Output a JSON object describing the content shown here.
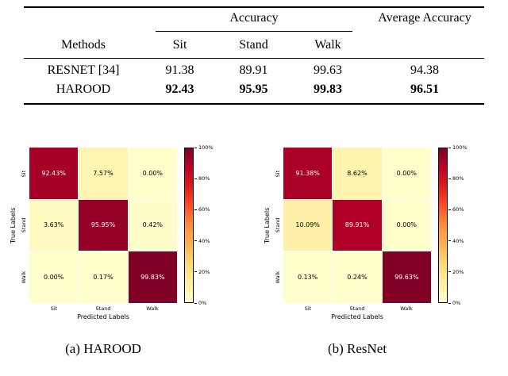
{
  "table": {
    "group_headers": {
      "accuracy": "Accuracy",
      "average_accuracy": "Average Accuracy"
    },
    "column_headers": {
      "methods": "Methods",
      "sit": "Sit",
      "stand": "Stand",
      "walk": "Walk"
    },
    "rows": [
      {
        "method": "RESNET [34]",
        "sit": "91.38",
        "stand": "89.91",
        "walk": "99.63",
        "average": "94.38",
        "bold": false
      },
      {
        "method": "HAROOD",
        "sit": "92.43",
        "stand": "95.95",
        "walk": "99.83",
        "average": "96.51",
        "bold": true
      }
    ]
  },
  "chart_data": [
    {
      "type": "heatmap",
      "caption": "(a) HAROOD",
      "xlabel": "Predicted Labels",
      "ylabel": "True Labels",
      "x_ticks": [
        "Sit",
        "Stand",
        "Walk"
      ],
      "y_ticks": [
        "Sit",
        "Stand",
        "Walk"
      ],
      "values": [
        [
          92.43,
          7.57,
          0.0
        ],
        [
          3.63,
          95.95,
          0.42
        ],
        [
          0.0,
          0.17,
          99.83
        ]
      ],
      "value_suffix": "%",
      "colorbar": {
        "min": 0,
        "max": 100,
        "tick_labels": [
          "0%",
          "20%",
          "40%",
          "60%",
          "80%",
          "100%"
        ]
      },
      "colormap": {
        "name": "YlOrRd",
        "stops": [
          "#ffffcc",
          "#ffeda0",
          "#fed976",
          "#feb24c",
          "#fd8d3c",
          "#fc4e2a",
          "#e31a1c",
          "#bd0026",
          "#800026"
        ]
      }
    },
    {
      "type": "heatmap",
      "caption": "(b) ResNet",
      "xlabel": "Predicted Labels",
      "ylabel": "True Labels",
      "x_ticks": [
        "Sit",
        "Stand",
        "Walk"
      ],
      "y_ticks": [
        "Sit",
        "Stand",
        "Walk"
      ],
      "values": [
        [
          91.38,
          8.62,
          0.0
        ],
        [
          10.09,
          89.91,
          0.0
        ],
        [
          0.13,
          0.24,
          99.63
        ]
      ],
      "value_suffix": "%",
      "colorbar": {
        "min": 0,
        "max": 100,
        "tick_labels": [
          "0%",
          "20%",
          "40%",
          "60%",
          "80%",
          "100%"
        ]
      },
      "colormap": {
        "name": "YlOrRd",
        "stops": [
          "#ffffcc",
          "#ffeda0",
          "#fed976",
          "#feb24c",
          "#fd8d3c",
          "#fc4e2a",
          "#e31a1c",
          "#bd0026",
          "#800026"
        ]
      }
    }
  ]
}
